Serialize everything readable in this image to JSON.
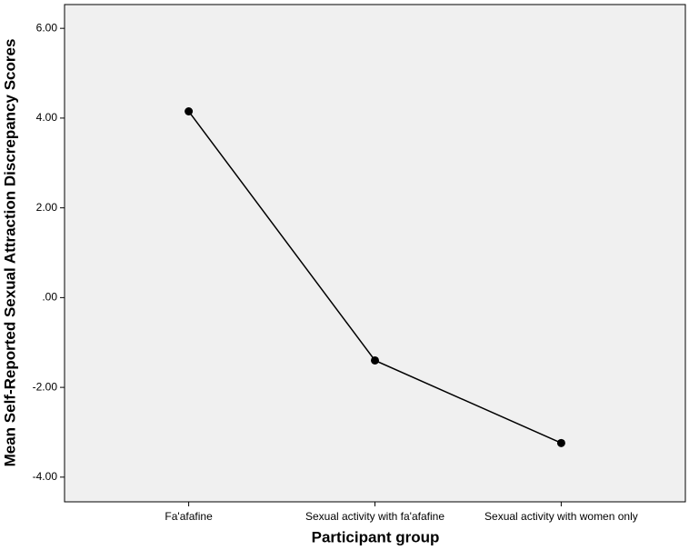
{
  "chart_data": {
    "type": "line",
    "x_label": "Participant group",
    "y_label": "Mean Self-Reported Sexual Attraction Discrepancy Scores",
    "categories": [
      "Fa'afafine",
      "Sexual activity with fa'afafine",
      "Sexual activity with women only"
    ],
    "values": [
      4.15,
      -1.4,
      -3.24
    ],
    "color": "#000000",
    "background": "#f0f0f0",
    "ylim": [
      -4.55,
      6.53
    ],
    "yticks": [
      {
        "value": -4,
        "label": "-4.00"
      },
      {
        "value": -2,
        "label": "-2.00"
      },
      {
        "value": 0,
        "label": ".00"
      },
      {
        "value": 2,
        "label": "2.00"
      },
      {
        "value": 4,
        "label": "4.00"
      },
      {
        "value": 6,
        "label": "6.00"
      }
    ],
    "grid": false
  }
}
